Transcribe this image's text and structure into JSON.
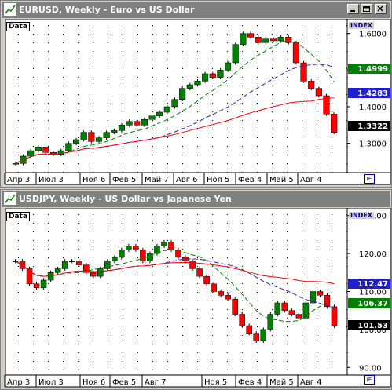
{
  "colors": {
    "green": "#008000",
    "blue": "#1f1fd0",
    "red": "#ff0000",
    "candle_up": "#008000",
    "candle_dn": "#ff0000"
  },
  "icons": {
    "window": "chart-icon",
    "minimize": "minimize-icon",
    "restore": "restore-icon",
    "close": "close-icon",
    "settings": "chart-settings-icon"
  },
  "charts": [
    {
      "title": "EURUSD, Weekly - Euro vs US Dollar",
      "data_label": "Data",
      "index_label": "INDEX",
      "yticks": [
        "1.6000",
        "1.5000",
        "1.4000",
        "1.3000"
      ],
      "tags": [
        {
          "text": "1.4999",
          "color": "#008000"
        },
        {
          "text": "1.4283",
          "color": "#1f1fd0"
        },
        {
          "text": "1.3322",
          "color": "#000000"
        }
      ],
      "xlabels": [
        "Апр 3",
        "Июл 3",
        "Ноя 6",
        "Фев 5",
        "Май 7",
        "Авг 6",
        "Ноя 5",
        "Фев 4",
        "Май 5",
        "Авг 4"
      ]
    },
    {
      "title": "USDJPY, Weekly - US Dollar vs Japanese Yen",
      "data_label": "Data",
      "index_label": "INDEX",
      "yticks": [
        "130.00",
        "120.00",
        "110.00",
        "100.00",
        "90.00"
      ],
      "tags": [
        {
          "text": "112.47",
          "color": "#1f1fd0"
        },
        {
          "text": "106.37",
          "color": "#008000"
        },
        {
          "text": "101.53",
          "color": "#000000"
        }
      ],
      "xlabels": [
        "Апр 3",
        "Июл 3",
        "Ноя 6",
        "Фев 5",
        "Авг 7",
        "Ноя 5",
        "Фев 4",
        "Май 5",
        "Авг 4"
      ]
    }
  ],
  "chart_data": [
    {
      "type": "line",
      "series": [
        {
          "values": [
            1.245,
            1.265,
            1.28,
            1.29,
            1.275,
            1.27,
            1.28,
            1.3,
            1.31,
            1.33,
            1.305,
            1.315,
            1.33,
            1.335,
            1.35,
            1.36,
            1.35,
            1.365,
            1.375,
            1.385,
            1.4,
            1.42,
            1.45,
            1.46,
            1.47,
            1.49,
            1.48,
            1.5,
            1.52,
            1.57,
            1.6,
            1.59,
            1.575,
            1.585,
            1.58,
            1.59,
            1.575,
            1.52,
            1.47,
            1.45,
            1.43,
            1.38,
            1.33
          ]
        }
      ],
      "ylim": [
        1.22,
        1.64
      ]
    },
    {
      "type": "line",
      "series": [
        {
          "values": [
            118,
            116,
            112,
            111,
            113,
            115,
            116,
            118,
            118,
            117,
            115,
            114,
            116,
            118,
            119,
            121,
            122,
            121,
            118,
            120,
            122,
            123,
            121,
            119,
            118,
            116,
            114,
            112,
            110,
            109,
            108,
            104,
            101,
            99,
            97,
            100,
            104,
            107,
            105,
            104,
            103,
            107,
            110,
            109,
            106,
            101
          ]
        }
      ],
      "ylim": [
        88,
        132
      ]
    }
  ]
}
